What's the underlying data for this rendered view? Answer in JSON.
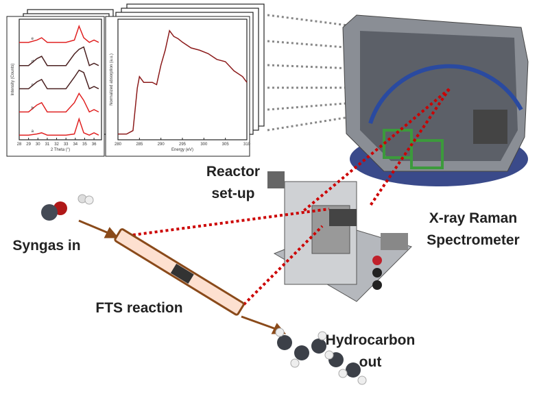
{
  "labels": {
    "reactor": [
      "Reactor",
      "set-up"
    ],
    "spectrometer": [
      "X-ray Raman",
      "Spectrometer"
    ],
    "syngas": "Syngas in",
    "fts": "FTS reaction",
    "hydrocarbon": [
      "Hydrocarbon",
      "out"
    ]
  },
  "insets": [
    {
      "type": "line",
      "xlabel": "2 Theta (°)",
      "ylabel": "Intensity (Counts)",
      "xlim": [
        28,
        36.8
      ],
      "xticks": [
        28,
        29,
        30,
        31,
        32,
        33,
        34,
        35,
        36
      ],
      "ylim": [
        0,
        5.2
      ],
      "x": [
        28,
        29,
        29.9,
        30.4,
        31,
        32,
        33,
        33.9,
        34.4,
        34.9,
        35.5,
        36,
        36.5
      ],
      "series": [
        {
          "name": "a",
          "color": "#e02020",
          "values": [
            0.2,
            0.2,
            0.25,
            0.3,
            0.2,
            0.2,
            0.2,
            0.25,
            0.9,
            0.3,
            0.2,
            0.3,
            0.2
          ]
        },
        {
          "name": "b",
          "color": "#e02020",
          "values": [
            1.2,
            1.2,
            1.5,
            1.6,
            1.2,
            1.2,
            1.2,
            1.6,
            2.0,
            1.7,
            1.2,
            1.3,
            1.2
          ]
        },
        {
          "name": "c",
          "color": "#4a2020",
          "values": [
            2.2,
            2.2,
            2.5,
            2.6,
            2.2,
            2.2,
            2.2,
            2.7,
            3.0,
            2.9,
            2.2,
            2.3,
            2.2
          ]
        },
        {
          "name": "d",
          "color": "#4a2020",
          "values": [
            3.2,
            3.2,
            3.5,
            3.6,
            3.2,
            3.2,
            3.2,
            3.7,
            3.9,
            4.0,
            3.2,
            3.3,
            3.2
          ]
        },
        {
          "name": "e",
          "color": "#e02020",
          "values": [
            4.2,
            4.2,
            4.3,
            4.4,
            4.2,
            4.2,
            4.2,
            4.3,
            4.9,
            4.4,
            4.2,
            4.3,
            4.2
          ]
        }
      ]
    },
    {
      "type": "line",
      "xlabel": "Energy (eV)",
      "ylabel": "Normalized absorption (a.u.)",
      "xlim": [
        280,
        310
      ],
      "xticks": [
        280,
        285,
        290,
        295,
        300,
        305,
        310
      ],
      "ylim": [
        0,
        1.05
      ],
      "x": [
        280,
        282,
        283.5,
        284.5,
        285,
        286,
        288,
        289,
        290,
        291,
        292,
        293,
        294,
        295,
        297,
        299,
        301,
        303,
        305,
        307,
        309,
        310
      ],
      "series": [
        {
          "color": "#8b1a1a",
          "values": [
            0.05,
            0.05,
            0.08,
            0.45,
            0.55,
            0.5,
            0.5,
            0.48,
            0.65,
            0.78,
            0.95,
            0.9,
            0.88,
            0.85,
            0.8,
            0.78,
            0.75,
            0.7,
            0.68,
            0.6,
            0.55,
            0.5
          ]
        }
      ]
    }
  ]
}
